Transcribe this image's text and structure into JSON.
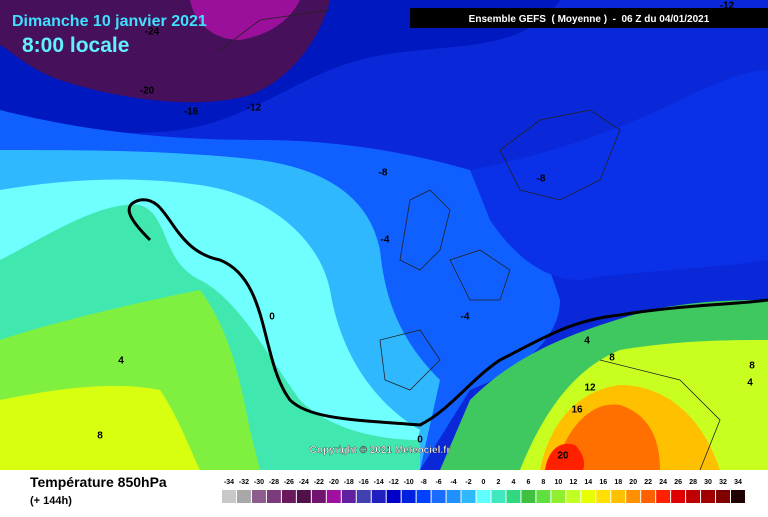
{
  "header": {
    "date": "Dimanche 10 janvier 2021",
    "time": "8:00 locale",
    "model": "Ensemble GEFS  ( Moyenne )  -  06 Z du 04/01/2021"
  },
  "copyright": "Copyright © 2021 Meteociel.fr",
  "footer": {
    "parameter": "Température 850hPa",
    "lead": "(+ 144h)"
  },
  "contour_labels": [
    -24,
    -20,
    -16,
    -12,
    -8,
    -8,
    -12,
    -4,
    0,
    4,
    8,
    -4,
    4,
    8,
    12,
    16,
    20,
    8,
    4,
    0
  ],
  "legend": {
    "ticks": [
      -34,
      -32,
      -30,
      -28,
      -26,
      -24,
      -22,
      -20,
      -18,
      -16,
      -14,
      -12,
      -10,
      -8,
      -6,
      -4,
      -2,
      0,
      2,
      4,
      6,
      8,
      10,
      12,
      14,
      16,
      18,
      20,
      22,
      24,
      26,
      28,
      30,
      32,
      34
    ],
    "colors": [
      "#c8c8c8",
      "#a8a8a8",
      "#8c5c8c",
      "#7c3c7c",
      "#6a1a5a",
      "#50104a",
      "#701470",
      "#a010a0",
      "#6020a0",
      "#4040b0",
      "#2020c0",
      "#0000c8",
      "#0020e0",
      "#0040ff",
      "#1a6cff",
      "#2090ff",
      "#30b8ff",
      "#60ffff",
      "#40e8c0",
      "#30d880",
      "#40c040",
      "#60e040",
      "#90f030",
      "#c0ff20",
      "#e8ff00",
      "#ffe000",
      "#ffc000",
      "#ff9000",
      "#ff6000",
      "#ff2000",
      "#e00000",
      "#c00000",
      "#a00000",
      "#800000",
      "#200000"
    ]
  }
}
